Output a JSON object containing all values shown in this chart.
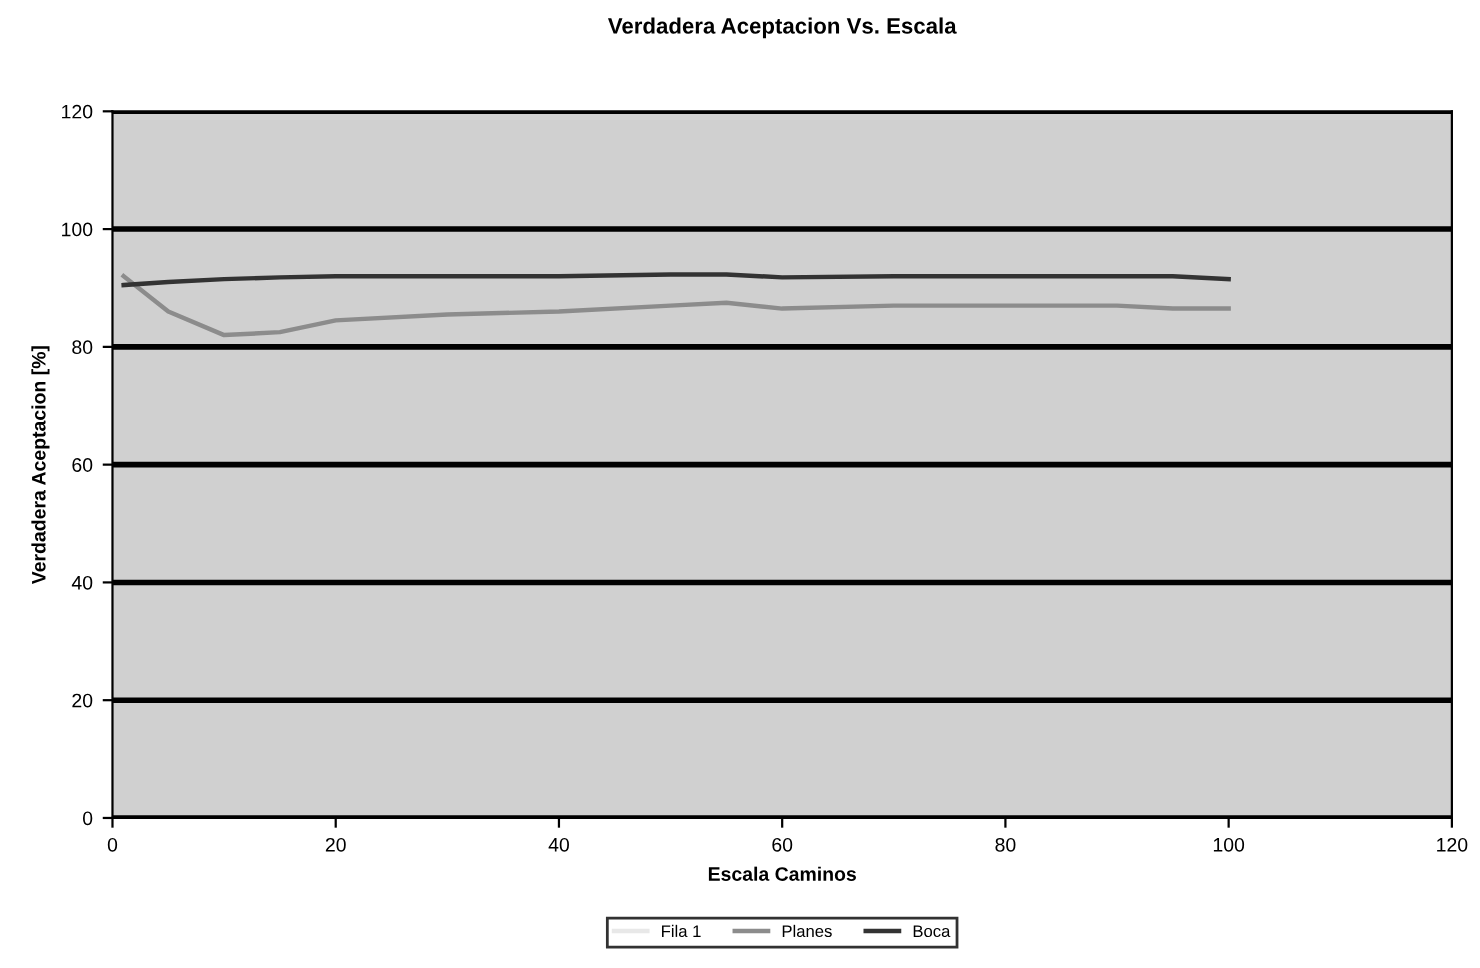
{
  "chart_data": {
    "type": "line",
    "title": "Verdadera Aceptacion Vs. Escala",
    "xlabel": "Escala Caminos",
    "ylabel": "Verdadera Aceptacion [%]",
    "x": [
      1,
      5,
      10,
      15,
      20,
      30,
      40,
      50,
      55,
      60,
      70,
      80,
      90,
      95,
      100
    ],
    "series": [
      {
        "name": "Fila 1",
        "color": "#e8e8e8",
        "values": [
          null,
          null,
          null,
          null,
          null,
          null,
          null,
          null,
          null,
          null,
          null,
          null,
          null,
          null,
          null
        ]
      },
      {
        "name": "Planes",
        "color": "#8c8c8c",
        "values": [
          92,
          86,
          82,
          82.5,
          84.5,
          85.5,
          86,
          87,
          87.5,
          86.5,
          87,
          87,
          87,
          86.5,
          86.5
        ]
      },
      {
        "name": "Boca",
        "color": "#333333",
        "values": [
          90.5,
          91,
          91.5,
          91.8,
          92,
          92,
          92,
          92.3,
          92.3,
          91.8,
          92,
          92,
          92,
          92,
          91.5
        ]
      }
    ],
    "xlim": [
      0,
      120
    ],
    "xticks": [
      0,
      20,
      40,
      60,
      80,
      100,
      120
    ],
    "ylim": [
      0,
      120
    ],
    "yticks": [
      0,
      20,
      40,
      60,
      80,
      100,
      120
    ],
    "grid": "y",
    "legend": "bottom",
    "line_style": "solid",
    "marker": "none"
  }
}
